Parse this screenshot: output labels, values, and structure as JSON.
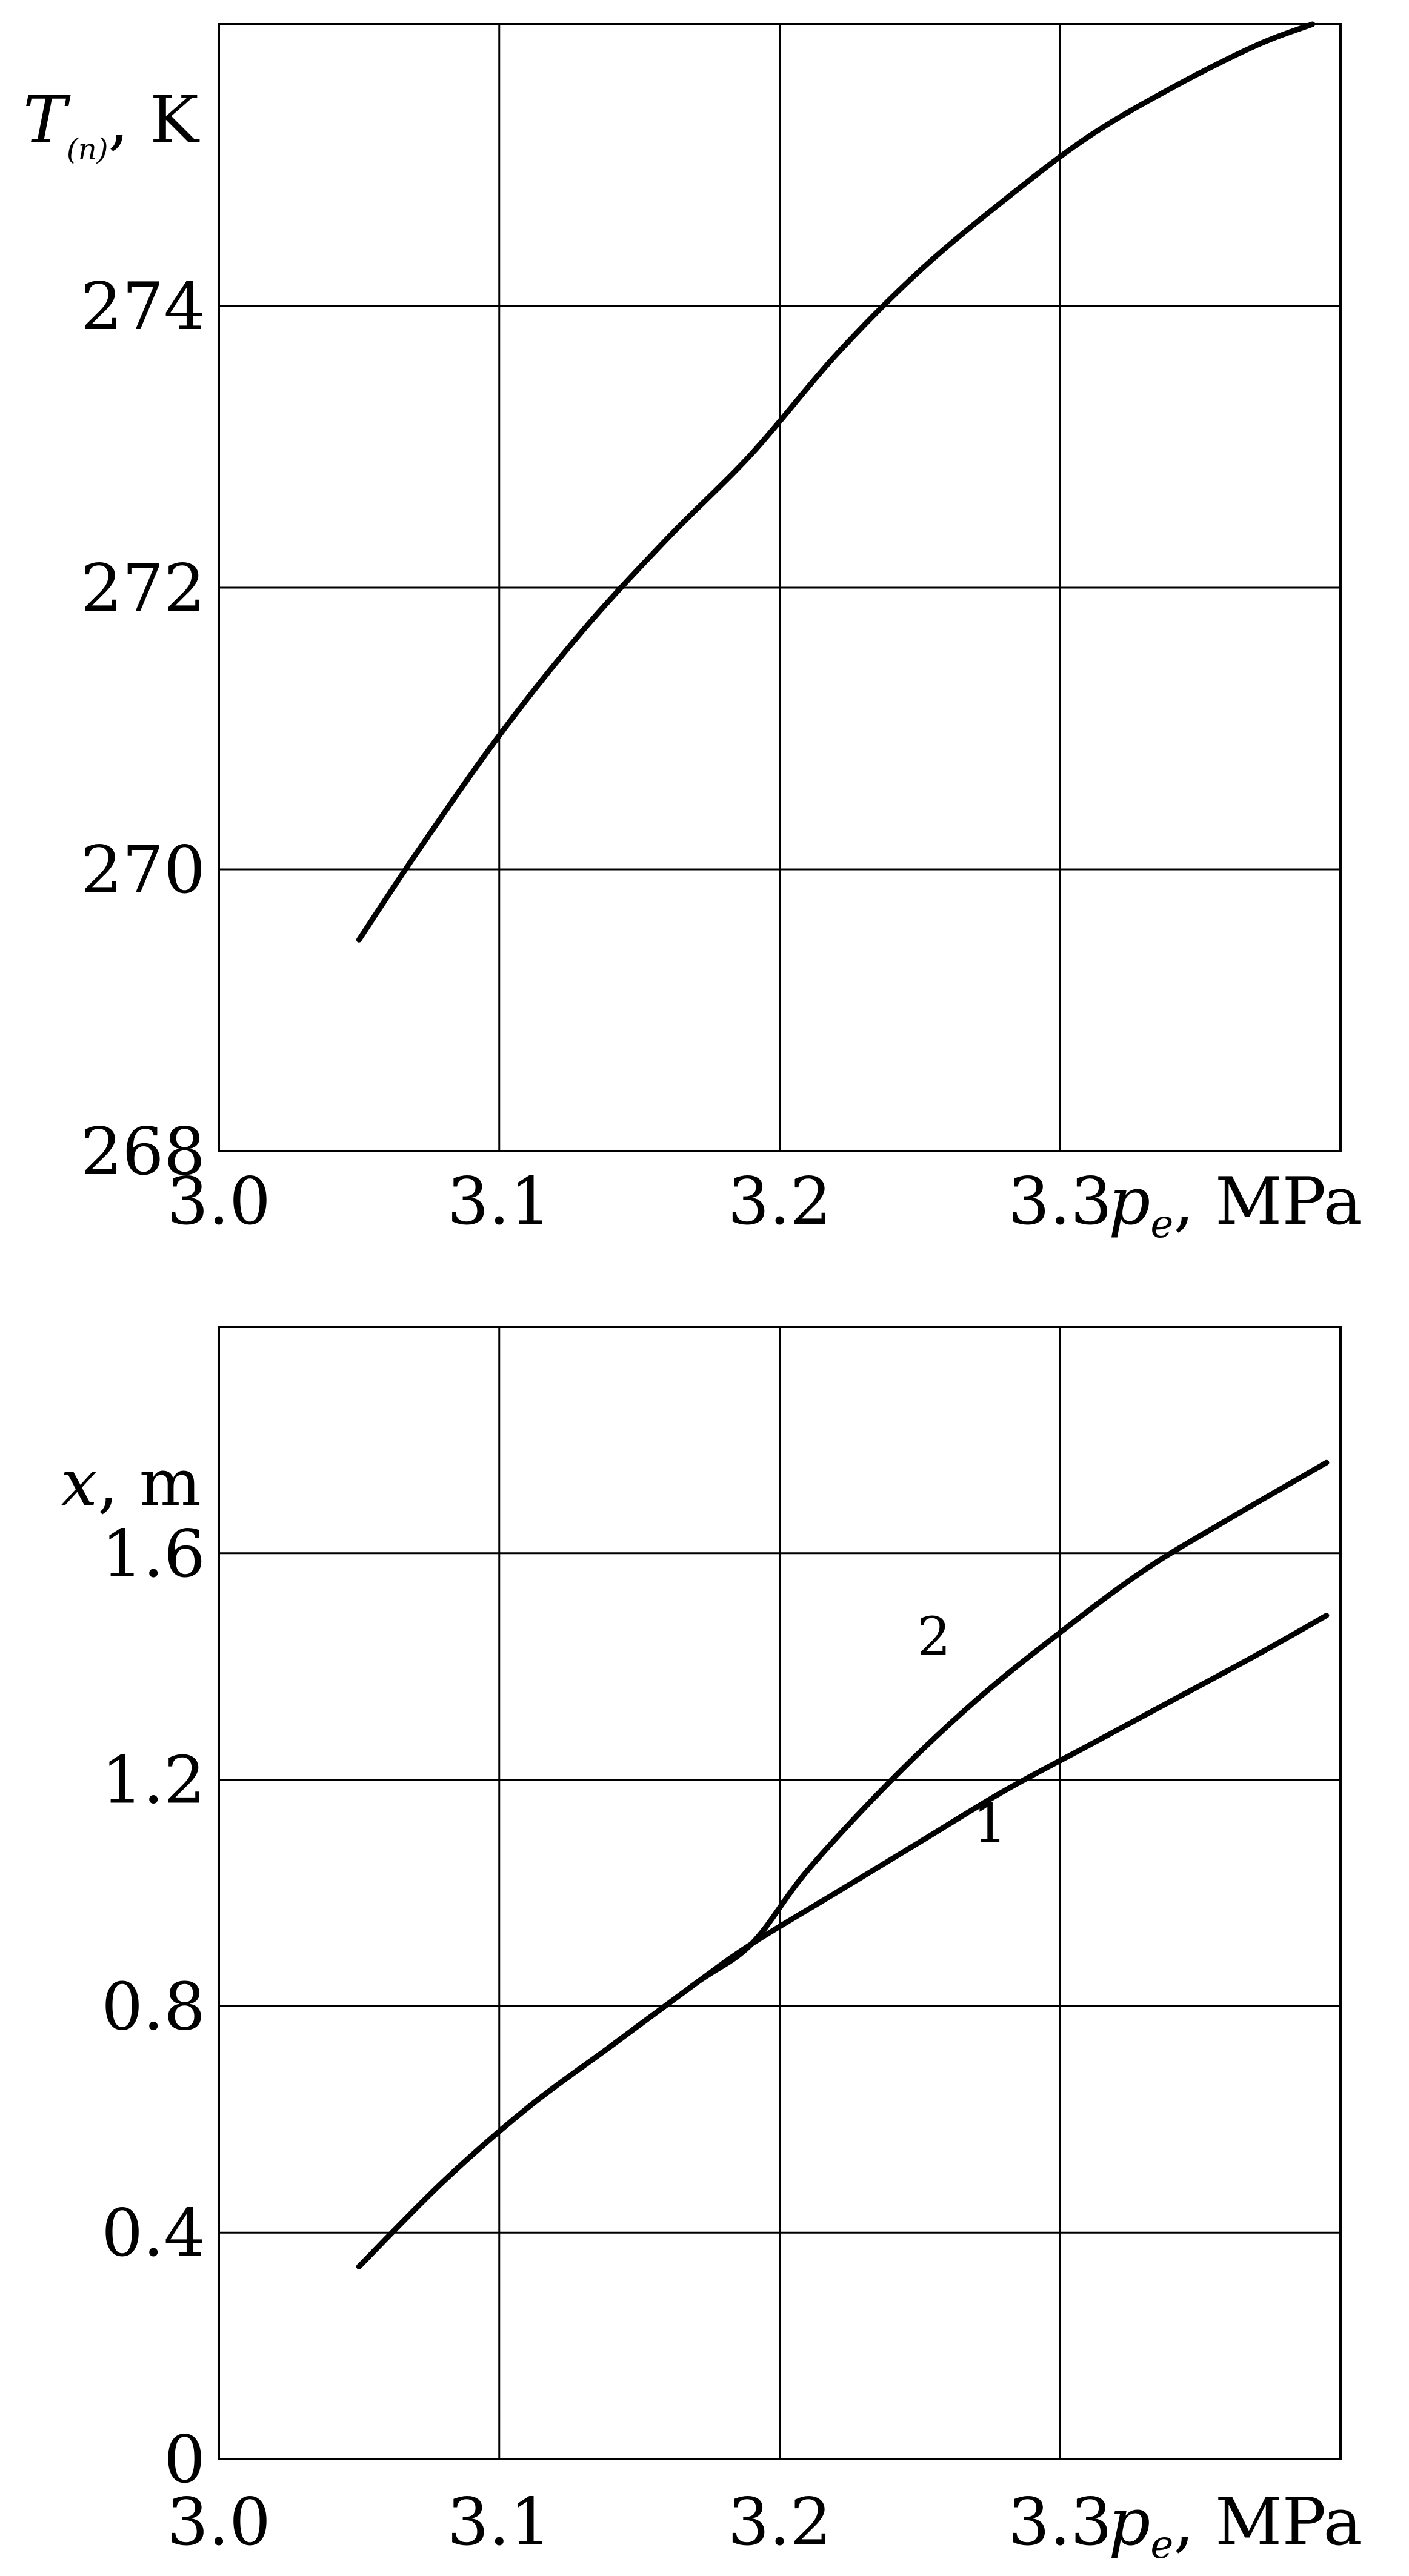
{
  "chart_data": [
    {
      "type": "line",
      "title": "",
      "xlabel": "p",
      "xlabel_subscript": "e",
      "xlabel_unit": ", MPa",
      "ylabel": "T",
      "ylabel_subscript": "(n)",
      "ylabel_unit": ", K",
      "xlim": [
        3.0,
        3.4
      ],
      "ylim": [
        268,
        276
      ],
      "x_ticks": [
        3.0,
        3.1,
        3.2,
        3.3
      ],
      "x_tick_labels": [
        "3.0",
        "3.1",
        "3.2",
        "3.3"
      ],
      "y_ticks": [
        268,
        270,
        272,
        274
      ],
      "y_tick_labels": [
        "268",
        "270",
        "272",
        "274"
      ],
      "grid": true,
      "legend": "none",
      "series": [
        {
          "x": [
            3.05,
            3.07,
            3.1,
            3.13,
            3.16,
            3.19,
            3.22,
            3.25,
            3.28,
            3.31,
            3.34,
            3.37,
            3.39
          ],
          "y": [
            269.5,
            270.1,
            270.95,
            271.7,
            272.35,
            272.95,
            273.65,
            274.25,
            274.75,
            275.2,
            275.55,
            275.85,
            276.0
          ]
        }
      ]
    },
    {
      "type": "line",
      "title": "",
      "xlabel": "p",
      "xlabel_subscript": "e",
      "xlabel_unit": ", MPa",
      "ylabel": "x",
      "ylabel_unit": ", m",
      "xlim": [
        3.0,
        3.4
      ],
      "ylim": [
        0,
        2.0
      ],
      "x_ticks": [
        3.0,
        3.1,
        3.2,
        3.3
      ],
      "x_tick_labels": [
        "3.0",
        "3.1",
        "3.2",
        "3.3"
      ],
      "y_ticks": [
        0,
        0.4,
        0.8,
        1.2,
        1.6
      ],
      "y_tick_labels": [
        "0",
        "0.4",
        "0.8",
        "1.2",
        "1.6"
      ],
      "grid": true,
      "legend": "none",
      "series": [
        {
          "name": "1",
          "x": [
            3.05,
            3.08,
            3.11,
            3.14,
            3.17,
            3.19,
            3.22,
            3.25,
            3.28,
            3.31,
            3.34,
            3.37,
            3.395
          ],
          "y": [
            0.34,
            0.49,
            0.62,
            0.73,
            0.84,
            0.91,
            1.0,
            1.09,
            1.18,
            1.26,
            1.34,
            1.42,
            1.49
          ]
        },
        {
          "name": "2",
          "x": [
            3.05,
            3.08,
            3.11,
            3.14,
            3.17,
            3.19,
            3.21,
            3.24,
            3.27,
            3.3,
            3.33,
            3.36,
            3.395
          ],
          "y": [
            0.34,
            0.49,
            0.62,
            0.73,
            0.84,
            0.91,
            1.04,
            1.2,
            1.34,
            1.46,
            1.57,
            1.66,
            1.76
          ]
        }
      ],
      "curve_labels": [
        "1",
        "2"
      ]
    }
  ]
}
